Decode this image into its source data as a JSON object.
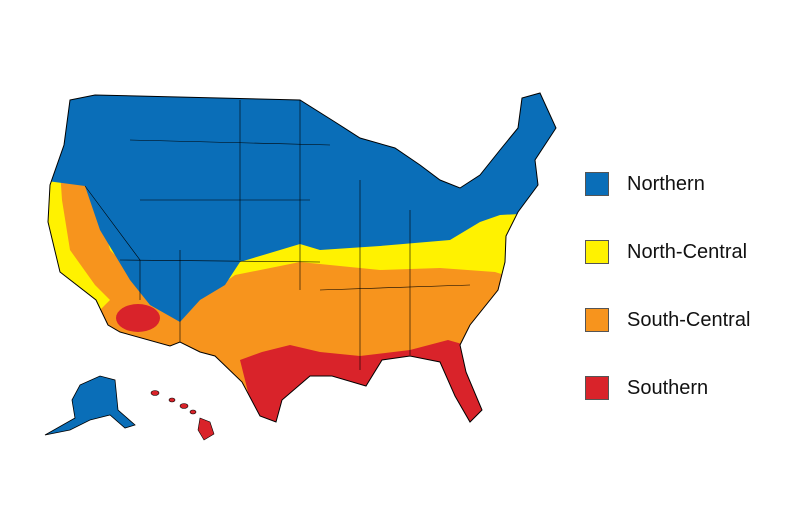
{
  "legend": [
    {
      "label": "Northern",
      "color": "#0a6eb8"
    },
    {
      "label": "North-Central",
      "color": "#fff200"
    },
    {
      "label": "South-Central",
      "color": "#f7941d"
    },
    {
      "label": "Southern",
      "color": "#d9232a"
    }
  ]
}
